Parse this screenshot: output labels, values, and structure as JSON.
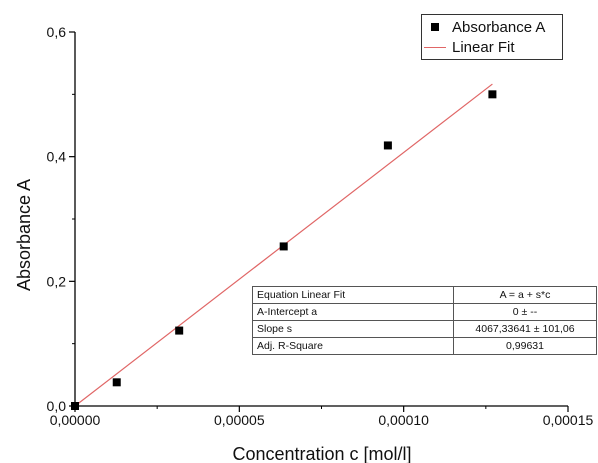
{
  "chart_data": {
    "type": "scatter",
    "xlabel": "Concentration c [mol/l]",
    "ylabel": "Absorbance A",
    "xlim": [
      0,
      0.00015
    ],
    "ylim": [
      0,
      0.6
    ],
    "x_ticks": [
      "0,00000",
      "0,00005",
      "0,00010",
      "0,00015"
    ],
    "y_ticks": [
      "0,0",
      "0,2",
      "0,4",
      "0,6"
    ],
    "grid": false,
    "legend_position": "top-right",
    "series": [
      {
        "name": "Absorbance A",
        "kind": "scatter",
        "color": "#000000",
        "x": [
          0,
          1.27e-05,
          3.17e-05,
          6.35e-05,
          9.52e-05,
          0.000127
        ],
        "y": [
          0,
          0.038,
          0.121,
          0.256,
          0.418,
          0.5
        ]
      },
      {
        "name": "Linear Fit",
        "kind": "line",
        "color": "#e06666",
        "x": [
          0,
          0.000127
        ],
        "y": [
          0,
          0.5165
        ]
      }
    ],
    "fit_table": [
      {
        "key": "Equation Linear Fit",
        "value": "A = a + s*c"
      },
      {
        "key": "A-Intercept a",
        "value": "0 ± --"
      },
      {
        "key": "Slope s",
        "value": "4067,33641 ± 101,06"
      },
      {
        "key": "Adj. R-Square",
        "value": "0,99631"
      }
    ]
  }
}
